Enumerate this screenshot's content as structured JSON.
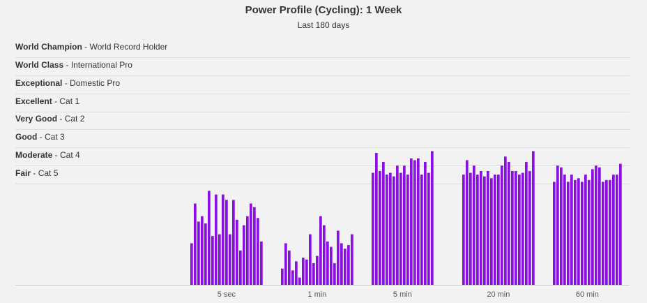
{
  "chart_data": {
    "type": "bar",
    "title": "Power Profile (Cycling): 1 Week",
    "subtitle": "Last 180 days",
    "bar_color": "#8a0fe0",
    "categories": [
      "5 sec",
      "1 min",
      "5 min",
      "20 min",
      "60 min"
    ],
    "levels": [
      {
        "name": "World Champion",
        "desc": "World Record Holder",
        "value": 8
      },
      {
        "name": "World Class",
        "desc": "International Pro",
        "value": 7
      },
      {
        "name": "Exceptional",
        "desc": "Domestic Pro",
        "value": 6
      },
      {
        "name": "Excellent",
        "desc": "Cat 1",
        "value": 5
      },
      {
        "name": "Very Good",
        "desc": "Cat 2",
        "value": 4
      },
      {
        "name": "Good",
        "desc": "Cat 3",
        "value": 3
      },
      {
        "name": "Moderate",
        "desc": "Cat 4",
        "value": 2
      },
      {
        "name": "Fair",
        "desc": "Cat 5",
        "value": 1
      }
    ],
    "ylim": [
      -5.6,
      8
    ],
    "groups": [
      {
        "category": "5 sec",
        "values": [
          -3.3,
          -1.1,
          -2.1,
          -1.8,
          -2.2,
          -0.4,
          -2.9,
          -0.6,
          -2.8,
          -0.6,
          -0.9,
          -2.8,
          -0.9,
          -2.0,
          -3.7,
          -2.3,
          -1.8,
          -1.1,
          -1.3,
          -1.9,
          -3.2
        ]
      },
      {
        "category": "1 min",
        "values": [
          -4.7,
          -3.3,
          -3.7,
          -4.8,
          -4.3,
          -5.2,
          -4.1,
          -4.2,
          -2.8,
          -4.4,
          -4.0,
          -1.8,
          -2.3,
          -3.2,
          -3.5,
          -4.4,
          -2.6,
          -3.3,
          -3.6,
          -3.4,
          -2.8
        ]
      },
      {
        "category": "5 min",
        "values": [
          0.6,
          1.7,
          0.7,
          1.2,
          0.5,
          0.6,
          0.4,
          1.0,
          0.6,
          1.0,
          0.5,
          1.4,
          1.3,
          1.4,
          0.5,
          1.2,
          0.6,
          1.8
        ]
      },
      {
        "category": "20 min",
        "values": [
          0.5,
          1.3,
          0.6,
          1.0,
          0.5,
          0.7,
          0.4,
          0.7,
          0.3,
          0.5,
          0.5,
          1.0,
          1.5,
          1.2,
          0.7,
          0.7,
          0.5,
          0.6,
          1.2,
          0.7,
          1.8
        ]
      },
      {
        "category": "60 min",
        "values": [
          0.1,
          1.0,
          0.9,
          0.5,
          0.1,
          0.5,
          0.2,
          0.3,
          0.1,
          0.5,
          0.2,
          0.8,
          1.0,
          0.9,
          0.1,
          0.2,
          0.2,
          0.5,
          0.5,
          1.1
        ]
      }
    ]
  }
}
